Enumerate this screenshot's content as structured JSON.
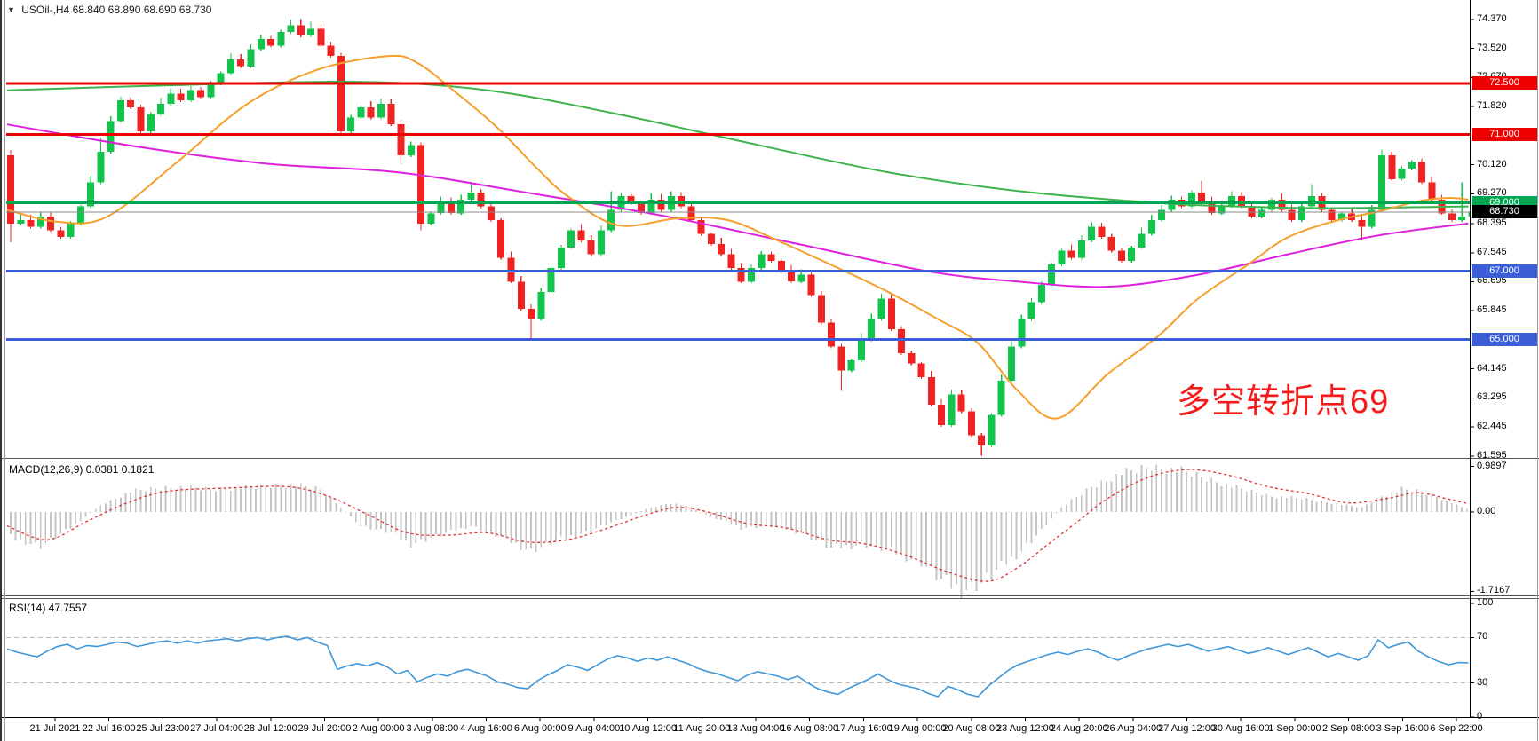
{
  "window": {
    "collapse_arrow": "▼",
    "symbol": "USOil-,H4",
    "ohlc": "68.840 68.890 68.690 68.730"
  },
  "annotation": {
    "text": "多空转折点69",
    "color": "#f31b1b"
  },
  "indicator_labels": {
    "macd": "MACD(12,26,9) 0.0381 0.1821",
    "rsi": "RSI(14) 47.7557"
  },
  "time_axis": {
    "labels": [
      "21 Jul 2021",
      "22 Jul 16:00",
      "25 Jul 23:00",
      "27 Jul 04:00",
      "28 Jul 12:00",
      "29 Jul 20:00",
      "2 Aug 00:00",
      "3 Aug 08:00",
      "4 Aug 16:00",
      "6 Aug 00:00",
      "9 Aug 04:00",
      "10 Aug 12:00",
      "11 Aug 20:00",
      "13 Aug 04:00",
      "16 Aug 08:00",
      "17 Aug 16:00",
      "19 Aug 00:00",
      "20 Aug 08:00",
      "23 Aug 12:00",
      "24 Aug 20:00",
      "26 Aug 04:00",
      "27 Aug 12:00",
      "30 Aug 16:00",
      "1 Sep 00:00",
      "2 Sep 08:00",
      "3 Sep 16:00",
      "6 Sep 22:00"
    ]
  },
  "price_axis": {
    "ticks": [
      {
        "label": "74.370",
        "value": 74.37
      },
      {
        "label": "73.520",
        "value": 73.52
      },
      {
        "label": "72.670",
        "value": 72.67
      },
      {
        "label": "71.820",
        "value": 71.82
      },
      {
        "label": "70.120",
        "value": 70.12
      },
      {
        "label": "69.270",
        "value": 69.27
      },
      {
        "label": "68.395",
        "value": 68.395
      },
      {
        "label": "67.545",
        "value": 67.545
      },
      {
        "label": "66.695",
        "value": 66.695
      },
      {
        "label": "65.845",
        "value": 65.845
      },
      {
        "label": "64.145",
        "value": 64.145
      },
      {
        "label": "63.295",
        "value": 63.295
      },
      {
        "label": "62.445",
        "value": 62.445
      },
      {
        "label": "61.595",
        "value": 61.595
      }
    ],
    "badges": [
      {
        "label": "72.500",
        "price": 72.5,
        "bg": "#ee0000"
      },
      {
        "label": "71.000",
        "price": 71.0,
        "bg": "#ee0000"
      },
      {
        "label": "69.000",
        "price": 69.0,
        "bg": "#00a651"
      },
      {
        "label": "68.730",
        "price": 68.73,
        "bg": "#000000"
      },
      {
        "label": "67.000",
        "price": 67.0,
        "bg": "#3c5fd8"
      },
      {
        "label": "65.000",
        "price": 65.0,
        "bg": "#3c5fd8"
      }
    ]
  },
  "macd_axis": {
    "ticks": [
      {
        "label": "0.9897",
        "value": 0.9897
      },
      {
        "label": "0.00",
        "value": 0
      },
      {
        "label": "-1.7167",
        "value": -1.7167
      }
    ]
  },
  "rsi_axis": {
    "ticks": [
      {
        "label": "100",
        "value": 100
      },
      {
        "label": "70",
        "value": 70
      },
      {
        "label": "30",
        "value": 30
      },
      {
        "label": "0",
        "value": 0
      }
    ]
  },
  "colors": {
    "bull": "#10c44c",
    "bear": "#f02222",
    "level_red": "#ee0000",
    "level_green": "#00a651",
    "level_blue": "#3c5fd8",
    "price_line": "#8a8a8a",
    "ma_slow": "#3cb44a",
    "ma_medium": "#e020e0",
    "ma_fast": "#f5a02c",
    "macd_hist": "#c4c4c4",
    "macd_signal": "#e03232",
    "rsi_line": "#3f97d9",
    "rsi_level": "#bbbbbb",
    "annotation": "#f31b1b",
    "axis_line": "#000000",
    "separator": "#555555"
  },
  "chart_data": [
    {
      "type": "candlestick",
      "title": "USOil-,H4",
      "timeframe": "H4",
      "x_range": [
        "21 Jul 2021",
        "6 Sep 2021 22:00"
      ],
      "y_range": [
        61.0,
        75.0
      ],
      "open_first": 70.4,
      "closes": [
        68.4,
        68.5,
        68.3,
        68.6,
        68.2,
        68.0,
        68.4,
        68.9,
        69.6,
        70.5,
        71.4,
        72.0,
        71.8,
        71.1,
        71.6,
        71.9,
        72.2,
        72.0,
        72.3,
        72.1,
        72.5,
        72.8,
        73.2,
        73.0,
        73.5,
        73.8,
        73.6,
        74.0,
        74.2,
        73.9,
        74.1,
        73.6,
        73.3,
        71.1,
        71.5,
        71.8,
        71.5,
        71.9,
        71.3,
        70.4,
        70.7,
        68.4,
        68.7,
        69.0,
        68.7,
        69.1,
        69.3,
        68.9,
        68.5,
        67.4,
        66.7,
        65.9,
        65.6,
        66.4,
        67.1,
        67.7,
        68.2,
        67.9,
        67.5,
        68.2,
        68.8,
        69.2,
        69.0,
        68.7,
        69.1,
        68.8,
        69.2,
        68.9,
        68.5,
        68.1,
        67.8,
        67.5,
        67.1,
        66.7,
        67.1,
        67.5,
        67.3,
        67.0,
        66.7,
        66.9,
        66.3,
        65.5,
        64.8,
        64.1,
        64.4,
        65.0,
        65.6,
        66.2,
        65.3,
        64.6,
        64.3,
        63.9,
        63.1,
        62.5,
        63.4,
        62.9,
        62.2,
        61.9,
        62.8,
        63.8,
        64.8,
        65.6,
        66.1,
        66.6,
        67.2,
        67.6,
        67.4,
        67.9,
        68.3,
        68.0,
        67.6,
        67.3,
        67.7,
        68.1,
        68.5,
        68.8,
        69.1,
        68.9,
        69.3,
        69.0,
        68.7,
        68.9,
        69.2,
        68.9,
        68.6,
        68.8,
        69.1,
        68.8,
        68.5,
        68.9,
        69.2,
        68.8,
        68.5,
        68.7,
        68.5,
        68.3,
        68.8,
        70.4,
        69.7,
        70.0,
        70.2,
        69.6,
        69.1,
        68.7,
        68.5,
        68.6,
        68.73
      ],
      "wick_overrides": {
        "0": {
          "h": 70.55,
          "l": 67.85
        },
        "9": {
          "h": 70.9
        },
        "28": {
          "h": 74.37
        },
        "30": {
          "h": 74.3
        },
        "33": {
          "l": 70.95
        },
        "39": {
          "l": 70.15
        },
        "41": {
          "l": 68.2
        },
        "46": {
          "h": 69.62
        },
        "52": {
          "l": 65.0
        },
        "60": {
          "h": 69.35
        },
        "83": {
          "l": 63.5
        },
        "97": {
          "l": 61.6
        },
        "119": {
          "h": 69.66
        },
        "130": {
          "h": 69.55
        },
        "135": {
          "l": 67.9
        },
        "137": {
          "h": 70.56
        },
        "141": {
          "h": 70.3
        },
        "145": {
          "h": 69.6
        },
        "146": {
          "l": 68.55
        }
      },
      "levels": [
        {
          "price": 72.5,
          "color": "#ee0000",
          "width": 3
        },
        {
          "price": 71.0,
          "color": "#ee0000",
          "width": 3
        },
        {
          "price": 69.0,
          "color": "#00a651",
          "width": 3
        },
        {
          "price": 67.0,
          "color": "#3c5fd8",
          "width": 3
        },
        {
          "price": 65.0,
          "color": "#3c5fd8",
          "width": 3
        }
      ],
      "current_price": 68.73,
      "moving_averages": [
        {
          "name": "ma-slow",
          "color": "#3cb44a",
          "points": [
            [
              0,
              72.3
            ],
            [
              17,
              72.45
            ],
            [
              35,
              72.55
            ],
            [
              48,
              72.3
            ],
            [
              61,
              71.6
            ],
            [
              75,
              70.7
            ],
            [
              88,
              69.9
            ],
            [
              101,
              69.35
            ],
            [
              115,
              69.0
            ],
            [
              123,
              68.9
            ],
            [
              132,
              68.85
            ],
            [
              146,
              68.9
            ]
          ]
        },
        {
          "name": "ma-medium",
          "color": "#e020e0",
          "points": [
            [
              0,
              71.3
            ],
            [
              13,
              70.65
            ],
            [
              26,
              70.15
            ],
            [
              39,
              69.9
            ],
            [
              52,
              69.3
            ],
            [
              66,
              68.6
            ],
            [
              79,
              67.8
            ],
            [
              92,
              67.0
            ],
            [
              101,
              66.7
            ],
            [
              110,
              66.55
            ],
            [
              119,
              66.9
            ],
            [
              128,
              67.5
            ],
            [
              137,
              68.05
            ],
            [
              146,
              68.4
            ]
          ]
        },
        {
          "name": "ma-fast",
          "color": "#f5a02c",
          "points": [
            [
              0,
              68.8
            ],
            [
              5,
              68.45
            ],
            [
              10,
              68.6
            ],
            [
              17,
              70.2
            ],
            [
              24,
              71.9
            ],
            [
              31,
              72.9
            ],
            [
              38,
              73.3
            ],
            [
              41,
              73.1
            ],
            [
              45,
              72.2
            ],
            [
              49,
              71.2
            ],
            [
              53,
              70.0
            ],
            [
              56,
              69.2
            ],
            [
              61,
              68.35
            ],
            [
              67,
              68.55
            ],
            [
              72,
              68.5
            ],
            [
              77,
              67.9
            ],
            [
              83,
              67.1
            ],
            [
              88,
              66.4
            ],
            [
              93,
              65.6
            ],
            [
              97,
              64.9
            ],
            [
              101,
              63.5
            ],
            [
              105,
              62.7
            ],
            [
              110,
              64.0
            ],
            [
              115,
              65.1
            ],
            [
              119,
              66.2
            ],
            [
              124,
              67.2
            ],
            [
              128,
              68.0
            ],
            [
              133,
              68.5
            ],
            [
              137,
              68.75
            ],
            [
              141,
              69.05
            ],
            [
              144,
              69.15
            ],
            [
              146,
              69.1
            ]
          ]
        }
      ]
    },
    {
      "type": "bar",
      "name": "MACD(12,26,9)",
      "current": {
        "macd": 0.0381,
        "signal": 0.1821
      },
      "y_range": [
        -1.7167,
        0.9897
      ],
      "histogram_points": [
        [
          0,
          -0.55
        ],
        [
          3,
          -0.75
        ],
        [
          6,
          -0.35
        ],
        [
          9,
          0.15
        ],
        [
          12,
          0.45
        ],
        [
          16,
          0.55
        ],
        [
          20,
          0.5
        ],
        [
          24,
          0.55
        ],
        [
          28,
          0.6
        ],
        [
          31,
          0.5
        ],
        [
          33,
          0.1
        ],
        [
          35,
          -0.3
        ],
        [
          38,
          -0.45
        ],
        [
          40,
          -0.7
        ],
        [
          43,
          -0.5
        ],
        [
          46,
          -0.3
        ],
        [
          49,
          -0.55
        ],
        [
          52,
          -0.85
        ],
        [
          55,
          -0.6
        ],
        [
          58,
          -0.4
        ],
        [
          61,
          -0.15
        ],
        [
          64,
          0.1
        ],
        [
          66,
          0.2
        ],
        [
          68,
          0.1
        ],
        [
          70,
          -0.1
        ],
        [
          73,
          -0.35
        ],
        [
          76,
          -0.3
        ],
        [
          79,
          -0.45
        ],
        [
          82,
          -0.8
        ],
        [
          85,
          -0.7
        ],
        [
          88,
          -0.85
        ],
        [
          91,
          -1.1
        ],
        [
          93,
          -1.5
        ],
        [
          95,
          -1.717
        ],
        [
          97,
          -1.55
        ],
        [
          99,
          -1.2
        ],
        [
          101,
          -0.85
        ],
        [
          103,
          -0.4
        ],
        [
          105,
          0.1
        ],
        [
          108,
          0.55
        ],
        [
          111,
          0.85
        ],
        [
          114,
          0.99
        ],
        [
          117,
          0.9
        ],
        [
          120,
          0.7
        ],
        [
          123,
          0.5
        ],
        [
          126,
          0.35
        ],
        [
          129,
          0.3
        ],
        [
          132,
          0.2
        ],
        [
          135,
          0.1
        ],
        [
          137,
          0.35
        ],
        [
          139,
          0.5
        ],
        [
          141,
          0.45
        ],
        [
          143,
          0.3
        ],
        [
          145,
          0.1
        ],
        [
          146,
          0.04
        ]
      ],
      "signal_points": [
        [
          0,
          -0.3
        ],
        [
          4,
          -0.6
        ],
        [
          8,
          -0.2
        ],
        [
          12,
          0.2
        ],
        [
          16,
          0.45
        ],
        [
          22,
          0.52
        ],
        [
          28,
          0.55
        ],
        [
          32,
          0.35
        ],
        [
          36,
          -0.05
        ],
        [
          40,
          -0.45
        ],
        [
          44,
          -0.5
        ],
        [
          48,
          -0.45
        ],
        [
          52,
          -0.65
        ],
        [
          56,
          -0.6
        ],
        [
          60,
          -0.35
        ],
        [
          64,
          -0.05
        ],
        [
          67,
          0.1
        ],
        [
          70,
          0.0
        ],
        [
          74,
          -0.25
        ],
        [
          78,
          -0.35
        ],
        [
          82,
          -0.6
        ],
        [
          86,
          -0.7
        ],
        [
          90,
          -0.95
        ],
        [
          94,
          -1.3
        ],
        [
          98,
          -1.5
        ],
        [
          101,
          -1.2
        ],
        [
          104,
          -0.7
        ],
        [
          107,
          -0.2
        ],
        [
          110,
          0.3
        ],
        [
          114,
          0.75
        ],
        [
          118,
          0.92
        ],
        [
          122,
          0.8
        ],
        [
          126,
          0.55
        ],
        [
          130,
          0.4
        ],
        [
          134,
          0.2
        ],
        [
          138,
          0.3
        ],
        [
          141,
          0.42
        ],
        [
          144,
          0.28
        ],
        [
          146,
          0.1821
        ]
      ]
    },
    {
      "type": "line",
      "name": "RSI(14)",
      "current": 47.7557,
      "levels": [
        70,
        30
      ],
      "y_range": [
        0,
        100
      ],
      "values": [
        60,
        57,
        55,
        53,
        58,
        62,
        64,
        60,
        63,
        62,
        64,
        66,
        65,
        62,
        64,
        66,
        67,
        65,
        67,
        65,
        67,
        68,
        69,
        67,
        69,
        70,
        68,
        70,
        71,
        68,
        70,
        66,
        63,
        42,
        45,
        47,
        45,
        48,
        44,
        38,
        41,
        31,
        35,
        38,
        36,
        40,
        42,
        39,
        36,
        31,
        29,
        26,
        25,
        32,
        37,
        41,
        46,
        44,
        41,
        46,
        51,
        54,
        52,
        49,
        52,
        50,
        53,
        50,
        47,
        43,
        40,
        38,
        35,
        32,
        37,
        40,
        38,
        36,
        33,
        36,
        30,
        25,
        22,
        20,
        25,
        29,
        33,
        38,
        33,
        29,
        27,
        25,
        21,
        18,
        27,
        24,
        20,
        18,
        27,
        34,
        41,
        46,
        49,
        52,
        55,
        57,
        55,
        58,
        60,
        57,
        53,
        50,
        54,
        57,
        60,
        62,
        64,
        62,
        64,
        61,
        58,
        60,
        62,
        59,
        56,
        58,
        61,
        58,
        55,
        58,
        61,
        57,
        53,
        56,
        53,
        50,
        54,
        68,
        61,
        64,
        66,
        58,
        53,
        49,
        46,
        48,
        47.76
      ]
    }
  ]
}
